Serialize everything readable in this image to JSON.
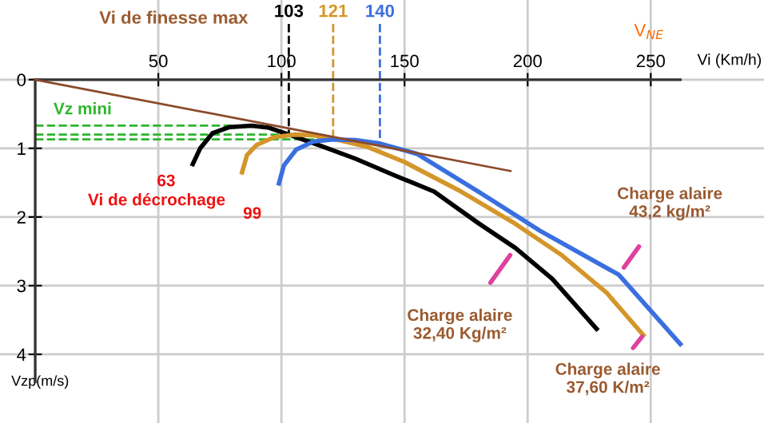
{
  "chart_data": {
    "type": "line",
    "xlabel": "Vi (Km/h)",
    "ylabel": "Vzp(m/s)",
    "xlim": [
      -14.3,
      296
    ],
    "ylim": [
      5.0,
      -1.16
    ],
    "xticks": [
      50,
      100,
      150,
      200,
      250
    ],
    "yticks": [
      0,
      1,
      2,
      3,
      4
    ],
    "grid": true,
    "series": [
      {
        "name": "Charge alaire\n32,40 Kg/m²",
        "color": "#000000",
        "x": [
          64,
          67,
          72,
          79,
          88,
          95,
          103,
          115,
          130,
          145,
          162,
          180,
          195,
          210,
          228
        ],
        "values": [
          1.23,
          1.0,
          0.78,
          0.69,
          0.67,
          0.7,
          0.8,
          0.95,
          1.15,
          1.38,
          1.63,
          2.09,
          2.45,
          2.9,
          3.63
        ]
      },
      {
        "name": "Charge alaire\n37,60 K/m²",
        "color": "#d4962a",
        "x": [
          84,
          86,
          90,
          97,
          105,
          113,
          121,
          135,
          150,
          173,
          195,
          214,
          232,
          247
        ],
        "values": [
          1.35,
          1.1,
          0.95,
          0.84,
          0.8,
          0.81,
          0.86,
          0.98,
          1.2,
          1.63,
          2.1,
          2.56,
          3.1,
          3.72
        ]
      },
      {
        "name": "Charge alaire\n43,2 kg/m²",
        "color": "#3a6fe0",
        "x": [
          99,
          101,
          106,
          113,
          121,
          130,
          140,
          155,
          180,
          205,
          237,
          262
        ],
        "values": [
          1.51,
          1.25,
          1.02,
          0.9,
          0.87,
          0.88,
          0.93,
          1.08,
          1.63,
          2.2,
          2.84,
          3.85
        ]
      },
      {
        "color": "#8b4a2a",
        "x": [
          0,
          193
        ],
        "values": [
          0,
          1.33
        ]
      }
    ],
    "ref_lines": [
      {
        "axis": "x",
        "value": 103,
        "label": "103",
        "color": "#000000",
        "line_style": "dashed"
      },
      {
        "axis": "x",
        "value": 121,
        "label": "121",
        "color": "#d4962a",
        "line_style": "dashed"
      },
      {
        "axis": "x",
        "value": 140,
        "label": "140",
        "color": "#3a6fe0",
        "line_style": "dashed"
      },
      {
        "axis": "y",
        "value": 0.67,
        "color": "#2db52d",
        "line_style": "dashed"
      },
      {
        "axis": "y",
        "value": 0.8,
        "color": "#2db52d",
        "line_style": "dashed"
      },
      {
        "axis": "y",
        "value": 0.87,
        "color": "#2db52d",
        "line_style": "dashed"
      }
    ],
    "annotations": [
      "Vi de finesse max",
      "Vz mini",
      {
        "text": "63",
        "x": 64,
        "y": 1.23
      },
      {
        "text": "99",
        "x": 99,
        "y": 1.51
      },
      "Vi de décrochage",
      "V$_{NE}$"
    ]
  }
}
